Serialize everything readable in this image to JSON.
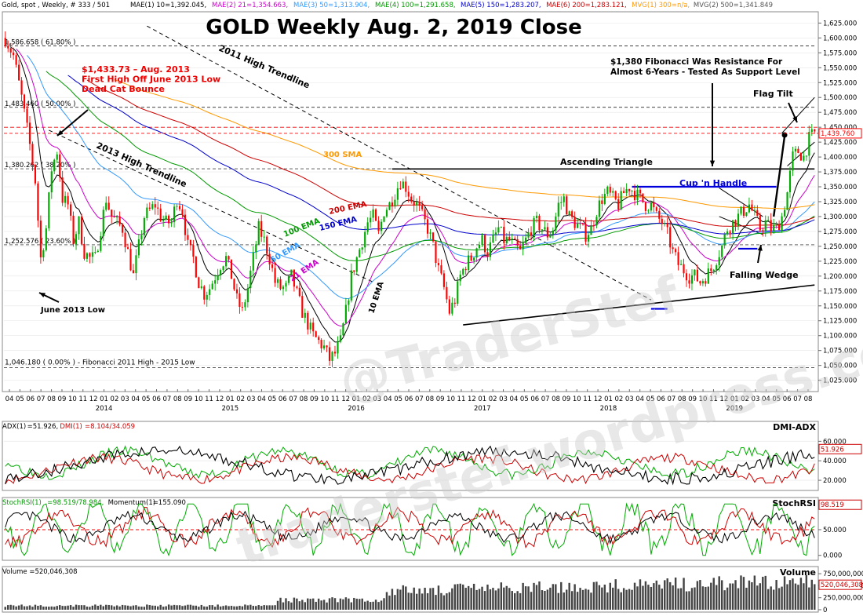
{
  "header": {
    "info": "Gold, spot , Weekly, # 333 / 501",
    "ma_items": [
      {
        "text": "MAE(1) 10=1,392.045,",
        "color": "#000000"
      },
      {
        "text": "MAE(2) 21=1,354.663,",
        "color": "#cc00cc"
      },
      {
        "text": "MAE(3) 50=1,313.904,",
        "color": "#3399ff"
      },
      {
        "text": "MAE(4) 100=1,291.658,",
        "color": "#009900"
      },
      {
        "text": "MAE(5) 150=1,283.207,",
        "color": "#0000cc"
      },
      {
        "text": "MAE(6) 200=1,283.121,",
        "color": "#cc0000"
      },
      {
        "text": "MVG(1) 300=n/a,",
        "color": "#ff9900"
      },
      {
        "text": "MVG(2) 500=1,341.849",
        "color": "#555555"
      }
    ]
  },
  "title": "GOLD Weekly Aug. 2, 2019 Close",
  "watermarks": [
    "@TraderStef",
    "traderstef.wordpress.com"
  ],
  "annotations": {
    "aug2013": [
      "$1,433.73 – Aug. 2013",
      "First High Off June 2013 Low",
      "Dead Cat Bounce"
    ],
    "fib_resistance": [
      "$1,380 Fibonacci Was Resistance For",
      "Almost 6-Years - Tested As Support Level"
    ],
    "trend_2011": "2011 High Trendline",
    "trend_2013": "2013 High Trendline",
    "june_low": "June 2013 Low",
    "flag_tilt": "Flag Tilt",
    "asc_triangle": "Ascending Triangle",
    "cup_handle": "Cup 'n Handle",
    "falling_wedge": "Falling Wedge",
    "fib_bottom": "1,046.180 ( 0.00% ) - Fibonacci 2011 High - 2015 Low",
    "ema_labels": [
      {
        "text": "300 SMA",
        "color": "#ff9900"
      },
      {
        "text": "200 EMA",
        "color": "#cc0000"
      },
      {
        "text": "150 EMA",
        "color": "#0000cc"
      },
      {
        "text": "100 EMA",
        "color": "#009900"
      },
      {
        "text": "50 EMA",
        "color": "#3399ff"
      },
      {
        "text": "21 EMA",
        "color": "#cc00cc"
      },
      {
        "text": "10 EMA",
        "color": "#000000"
      }
    ]
  },
  "fib_levels": [
    {
      "label": "1,586.658 ( 61.80% )",
      "value": 1586.658
    },
    {
      "label": "1,483.460 ( 50.00% )",
      "value": 1483.46
    },
    {
      "label": "1,380.262 ( 38.20% )",
      "value": 1380.262
    },
    {
      "label": "1,252.576 ( 23.60% )",
      "value": 1252.576
    }
  ],
  "panels": {
    "adx": {
      "name": "DMI-ADX",
      "legend": [
        {
          "text": "ADX(1)",
          "color": "#000000"
        },
        {
          "text": "=51.926,",
          "color": "#000000"
        },
        {
          "text": "DMI(1)",
          "color": "#cc0000"
        },
        {
          "text": "=8.104/34.059",
          "color": "#cc0000"
        }
      ],
      "ticks": [
        "60.000",
        "40.000",
        "20.000"
      ],
      "tick_values": [
        60,
        40,
        20
      ],
      "range": [
        12,
        78
      ],
      "current": "51.926"
    },
    "rsi": {
      "name": "StochRSI",
      "legend": [
        {
          "text": "StochRSI(1)",
          "color": "#009900"
        },
        {
          "text": "=98.519/78.984,",
          "color": "#009900"
        },
        {
          "text": "Momentum(1)",
          "color": "#000000"
        },
        {
          "text": "=155.090",
          "color": "#000000"
        }
      ],
      "ticks": [
        "50.000",
        "0.000"
      ],
      "tick_values": [
        50,
        0
      ],
      "range": [
        -5,
        108
      ],
      "current": "98.519"
    },
    "vol": {
      "name": "Volume",
      "legend": [
        {
          "text": "Volume =520,046,308",
          "color": "#000000"
        }
      ],
      "ticks": [
        "750,000,000",
        "500,000,000",
        "250,000,000",
        "0"
      ],
      "tick_values": [
        750,
        500,
        250,
        0
      ],
      "range": [
        0,
        850
      ],
      "current": "520,046,308"
    }
  },
  "chart_data": {
    "type": "candlestick",
    "title": "GOLD Weekly Aug. 2, 2019 Close",
    "y_ticks": [
      "1,625.000",
      "1,600.000",
      "1,575.000",
      "1,550.000",
      "1,525.000",
      "1,500.000",
      "1,475.000",
      "1,450.000",
      "1,425.000",
      "1,400.000",
      "1,375.000",
      "1,350.000",
      "1,325.000",
      "1,300.000",
      "1,275.000",
      "1,250.000",
      "1,225.000",
      "1,200.000",
      "1,175.000",
      "1,150.000",
      "1,125.000",
      "1,100.000",
      "1,075.000",
      "1,050.000",
      "1,025.000"
    ],
    "ylim": [
      1010,
      1640
    ],
    "last_price": "1,439.760",
    "x_month_labels": [
      "04",
      "05",
      "06",
      "07",
      "08",
      "09",
      "10",
      "11",
      "12",
      "01",
      "02",
      "03",
      "04",
      "05",
      "06",
      "07",
      "08",
      "09",
      "10",
      "11",
      "12",
      "01",
      "02",
      "03",
      "04",
      "05",
      "06",
      "07",
      "08",
      "09",
      "10",
      "11",
      "12",
      "01",
      "02",
      "03",
      "04",
      "05",
      "06",
      "07",
      "08",
      "09",
      "10",
      "11",
      "12",
      "01",
      "02",
      "03",
      "04",
      "05",
      "06",
      "07",
      "08",
      "09",
      "10",
      "11",
      "12",
      "01",
      "02",
      "03",
      "04",
      "05",
      "06",
      "07",
      "08",
      "09",
      "10",
      "11",
      "12",
      "01",
      "02",
      "03",
      "04",
      "05",
      "06",
      "07",
      "08"
    ],
    "x_year_labels": [
      "2014",
      "2015",
      "2016",
      "2017",
      "2018",
      "2019"
    ],
    "price_anchors": [
      [
        0,
        1600
      ],
      [
        3,
        1570
      ],
      [
        6,
        1500
      ],
      [
        9,
        1420
      ],
      [
        11,
        1360
      ],
      [
        13,
        1230
      ],
      [
        15,
        1280
      ],
      [
        17,
        1380
      ],
      [
        19,
        1410
      ],
      [
        21,
        1330
      ],
      [
        23,
        1320
      ],
      [
        25,
        1260
      ],
      [
        27,
        1290
      ],
      [
        29,
        1240
      ],
      [
        31,
        1230
      ],
      [
        33,
        1230
      ],
      [
        35,
        1280
      ],
      [
        37,
        1330
      ],
      [
        39,
        1300
      ],
      [
        41,
        1290
      ],
      [
        43,
        1280
      ],
      [
        45,
        1240
      ],
      [
        47,
        1200
      ],
      [
        49,
        1250
      ],
      [
        51,
        1300
      ],
      [
        53,
        1310
      ],
      [
        55,
        1320
      ],
      [
        57,
        1300
      ],
      [
        59,
        1290
      ],
      [
        61,
        1290
      ],
      [
        63,
        1330
      ],
      [
        65,
        1310
      ],
      [
        67,
        1250
      ],
      [
        69,
        1230
      ],
      [
        71,
        1190
      ],
      [
        73,
        1170
      ],
      [
        75,
        1180
      ],
      [
        77,
        1200
      ],
      [
        79,
        1220
      ],
      [
        81,
        1230
      ],
      [
        83,
        1200
      ],
      [
        85,
        1160
      ],
      [
        87,
        1140
      ],
      [
        89,
        1180
      ],
      [
        91,
        1230
      ],
      [
        93,
        1280
      ],
      [
        95,
        1260
      ],
      [
        97,
        1230
      ],
      [
        99,
        1190
      ],
      [
        101,
        1180
      ],
      [
        103,
        1180
      ],
      [
        105,
        1200
      ],
      [
        107,
        1170
      ],
      [
        109,
        1140
      ],
      [
        111,
        1120
      ],
      [
        113,
        1100
      ],
      [
        115,
        1090
      ],
      [
        117,
        1080
      ],
      [
        119,
        1060
      ],
      [
        121,
        1070
      ],
      [
        123,
        1090
      ],
      [
        125,
        1140
      ],
      [
        127,
        1200
      ],
      [
        129,
        1230
      ],
      [
        131,
        1260
      ],
      [
        133,
        1290
      ],
      [
        135,
        1300
      ],
      [
        137,
        1270
      ],
      [
        139,
        1310
      ],
      [
        141,
        1320
      ],
      [
        143,
        1340
      ],
      [
        145,
        1360
      ],
      [
        147,
        1350
      ],
      [
        149,
        1330
      ],
      [
        151,
        1320
      ],
      [
        153,
        1300
      ],
      [
        155,
        1280
      ],
      [
        157,
        1250
      ],
      [
        159,
        1210
      ],
      [
        161,
        1180
      ],
      [
        163,
        1140
      ],
      [
        165,
        1160
      ],
      [
        167,
        1200
      ],
      [
        169,
        1220
      ],
      [
        171,
        1230
      ],
      [
        173,
        1250
      ],
      [
        175,
        1260
      ],
      [
        177,
        1240
      ],
      [
        179,
        1260
      ],
      [
        181,
        1280
      ],
      [
        183,
        1260
      ],
      [
        185,
        1260
      ],
      [
        187,
        1250
      ],
      [
        189,
        1240
      ],
      [
        191,
        1260
      ],
      [
        193,
        1280
      ],
      [
        195,
        1290
      ],
      [
        197,
        1280
      ],
      [
        199,
        1270
      ],
      [
        201,
        1280
      ],
      [
        203,
        1320
      ],
      [
        205,
        1330
      ],
      [
        207,
        1300
      ],
      [
        209,
        1290
      ],
      [
        211,
        1280
      ],
      [
        213,
        1270
      ],
      [
        215,
        1280
      ],
      [
        217,
        1310
      ],
      [
        219,
        1330
      ],
      [
        221,
        1340
      ],
      [
        223,
        1330
      ],
      [
        225,
        1320
      ],
      [
        227,
        1340
      ],
      [
        229,
        1350
      ],
      [
        231,
        1340
      ],
      [
        233,
        1330
      ],
      [
        235,
        1320
      ],
      [
        237,
        1320
      ],
      [
        239,
        1300
      ],
      [
        241,
        1290
      ],
      [
        243,
        1270
      ],
      [
        245,
        1240
      ],
      [
        247,
        1220
      ],
      [
        249,
        1210
      ],
      [
        251,
        1200
      ],
      [
        253,
        1200
      ],
      [
        255,
        1190
      ],
      [
        257,
        1200
      ],
      [
        259,
        1210
      ],
      [
        261,
        1230
      ],
      [
        263,
        1250
      ],
      [
        265,
        1280
      ],
      [
        267,
        1290
      ],
      [
        269,
        1300
      ],
      [
        271,
        1310
      ],
      [
        273,
        1320
      ],
      [
        275,
        1300
      ],
      [
        277,
        1280
      ],
      [
        279,
        1290
      ],
      [
        281,
        1280
      ],
      [
        283,
        1280
      ],
      [
        285,
        1300
      ],
      [
        287,
        1340
      ],
      [
        289,
        1400
      ],
      [
        291,
        1410
      ],
      [
        293,
        1400
      ],
      [
        295,
        1430
      ],
      [
        297,
        1440
      ]
    ],
    "n_weeks": 298,
    "series": [
      {
        "name": "10 EMA",
        "color": "#000000",
        "period": 10
      },
      {
        "name": "21 EMA",
        "color": "#cc00cc",
        "period": 21
      },
      {
        "name": "50 EMA",
        "color": "#3399ff",
        "period": 50
      },
      {
        "name": "100 EMA",
        "color": "#009900",
        "period": 100
      },
      {
        "name": "150 EMA",
        "color": "#0000cc",
        "period": 150
      },
      {
        "name": "200 EMA",
        "color": "#cc0000",
        "period": 200
      },
      {
        "name": "300 SMA",
        "color": "#ff9900",
        "period": 300
      }
    ],
    "grid": true,
    "colors": {
      "up": "#00aa00",
      "down": "#ff0000",
      "last_price": "#ff0000"
    }
  }
}
